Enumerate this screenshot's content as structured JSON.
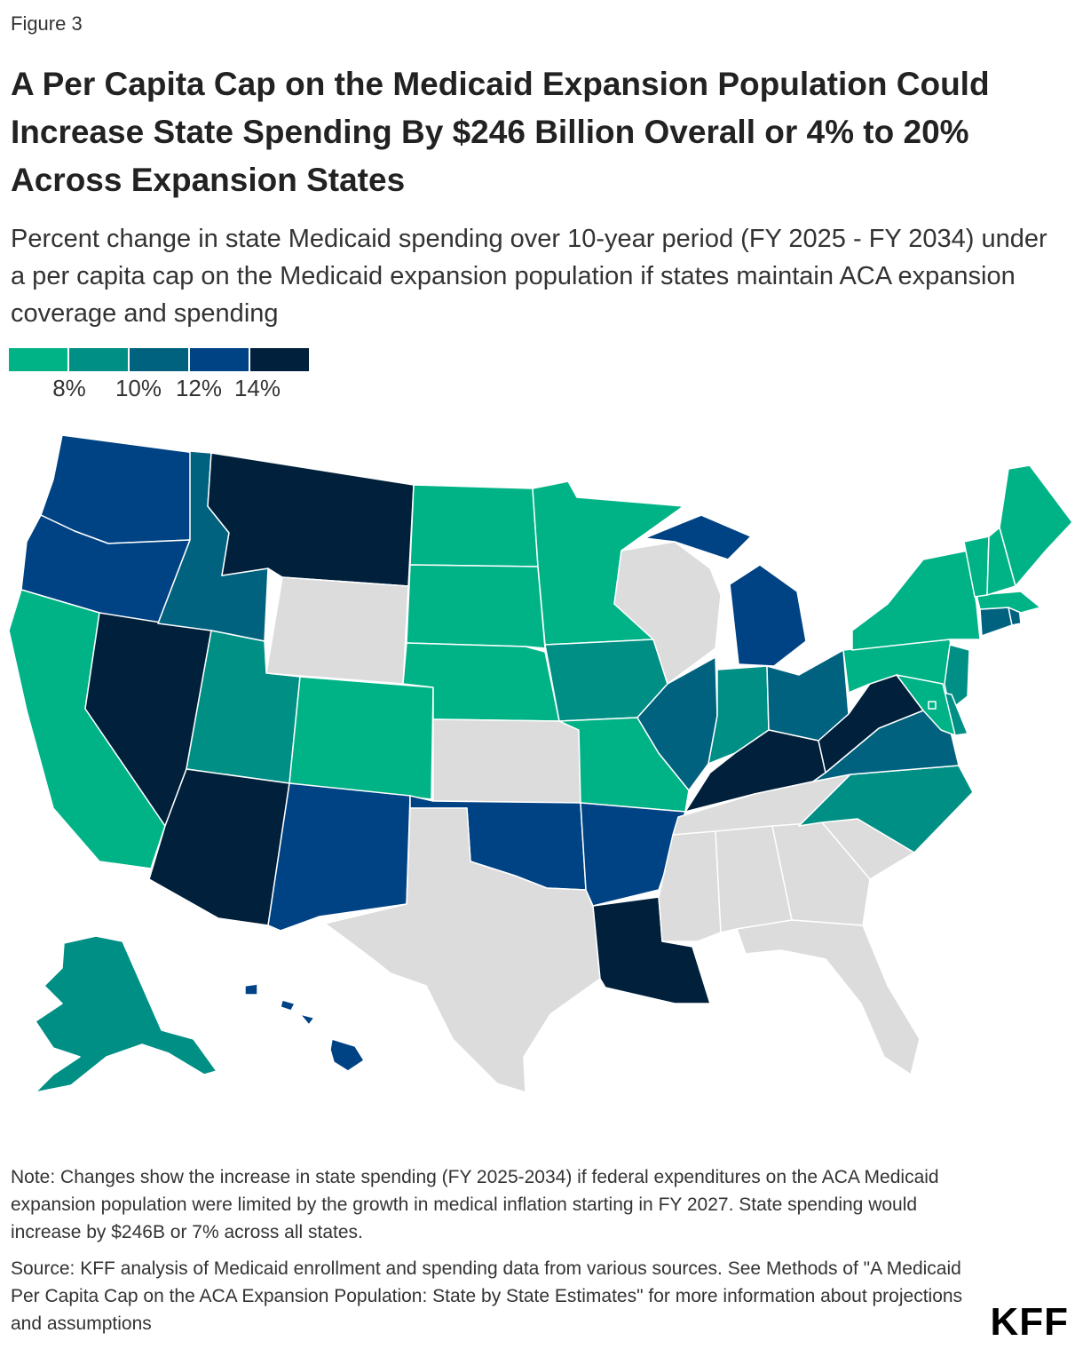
{
  "figure_label": "Figure 3",
  "title": "A Per Capita Cap on the Medicaid Expansion Population Could Increase State Spending By $246 Billion Overall or 4% to 20% Across Expansion States",
  "subtitle": "Percent change in state Medicaid spending over 10-year period (FY 2025 - FY 2034) under a per capita cap on the Medicaid expansion population if states maintain ACA expansion coverage and spending",
  "legend": {
    "colors": [
      "#00b386",
      "#008f85",
      "#00627f",
      "#004384",
      "#00203b"
    ],
    "ticks": [
      "8%",
      "10%",
      "12%",
      "14%"
    ]
  },
  "colors": {
    "not_expansion": "#dcdcdc",
    "bin0": "#00b386",
    "bin1": "#008f85",
    "bin2": "#00627f",
    "bin3": "#004384",
    "bin4": "#00203b"
  },
  "map_data": {
    "type": "choropleth",
    "bins": [
      "< 8%",
      "8%-10%",
      "10%-12%",
      "12%-14%",
      "> 14%"
    ],
    "states": {
      "WA": 3,
      "OR": 3,
      "CA": 0,
      "NV": 4,
      "ID": 2,
      "MT": 4,
      "WY": -1,
      "UT": 1,
      "AZ": 4,
      "CO": 0,
      "NM": 3,
      "ND": 0,
      "SD": 0,
      "NE": 0,
      "KS": -1,
      "OK": 3,
      "TX": -1,
      "MN": 0,
      "IA": 1,
      "MO": 0,
      "AR": 3,
      "LA": 4,
      "WI": -1,
      "IL": 2,
      "MI": 3,
      "IN": 1,
      "OH": 2,
      "KY": 4,
      "TN": -1,
      "MS": -1,
      "AL": -1,
      "GA": -1,
      "FL": -1,
      "SC": -1,
      "NC": 1,
      "VA": 2,
      "WV": 4,
      "PA": 0,
      "NY": 0,
      "VT": 0,
      "NH": 0,
      "ME": 0,
      "MA": 0,
      "RI": 2,
      "CT": 2,
      "NJ": 1,
      "DE": 1,
      "MD": 0,
      "DC": 0,
      "AK": 1,
      "HI": 3
    }
  },
  "note": "Note: Changes show the increase in state spending (FY 2025-2034) if federal expenditures on the ACA Medicaid expansion population were limited by the growth in medical inflation starting in FY 2027. State spending would increase by $246B or 7% across all states.",
  "source": "Source: KFF analysis of Medicaid enrollment and spending data from various sources. See Methods of \"A Medicaid Per Capita Cap on the ACA Expansion Population: State by State Estimates\" for more information about projections and assumptions",
  "logo": "KFF"
}
